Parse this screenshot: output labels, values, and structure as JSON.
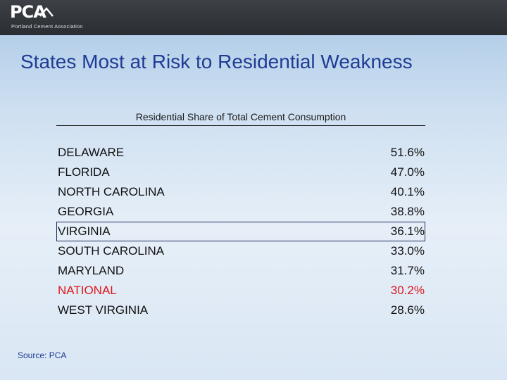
{
  "header": {
    "logo_text": "PCA",
    "logo_subtitle": "Portland Cement Association"
  },
  "slide": {
    "title": "States Most at Risk to Residential Weakness",
    "table_header": "Residential Share of Total Cement Consumption",
    "rows": [
      {
        "state": "DELAWARE",
        "share": "51.6%"
      },
      {
        "state": "FLORIDA",
        "share": "47.0%"
      },
      {
        "state": "NORTH CAROLINA",
        "share": "40.1%"
      },
      {
        "state": "GEORGIA",
        "share": "38.8%"
      },
      {
        "state": "VIRGINIA",
        "share": "36.1%"
      },
      {
        "state": "SOUTH CAROLINA",
        "share": "33.0%"
      },
      {
        "state": "MARYLAND",
        "share": "31.7%"
      },
      {
        "state": "NATIONAL",
        "share": "30.2%"
      },
      {
        "state": "WEST VIRGINIA",
        "share": "28.6%"
      }
    ],
    "source": "Source: PCA"
  },
  "colors": {
    "title": "#1f3c95",
    "national_row": "#e0171b",
    "header_bar": "#2f3237"
  }
}
